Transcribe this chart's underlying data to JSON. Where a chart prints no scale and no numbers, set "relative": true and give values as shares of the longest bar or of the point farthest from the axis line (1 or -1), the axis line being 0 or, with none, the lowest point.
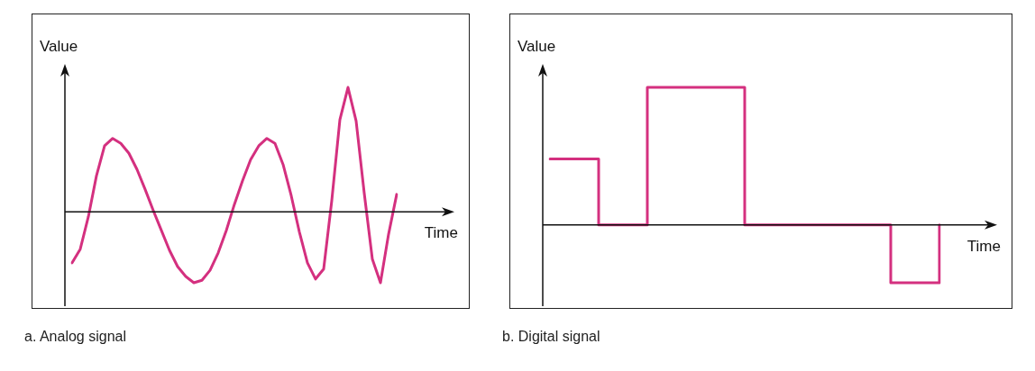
{
  "chart_data": [
    {
      "type": "line",
      "relative": true,
      "xlabel": "Time",
      "ylabel": "Value",
      "annotations": [
        "a. Analog signal"
      ],
      "color": "#d4307f",
      "categories": [
        null,
        null,
        null,
        null,
        null,
        null,
        null,
        null,
        null,
        null,
        null,
        null,
        null,
        null,
        null,
        null,
        null,
        null,
        null,
        null,
        null,
        null,
        null,
        null,
        null,
        null,
        null,
        null,
        null,
        null,
        null,
        null,
        null,
        null,
        null,
        null,
        null,
        null,
        null,
        null,
        null
      ],
      "values": [
        -0.41,
        -0.3,
        -0.04,
        0.29,
        0.53,
        0.59,
        0.55,
        0.47,
        0.34,
        0.18,
        0.01,
        -0.15,
        -0.31,
        -0.44,
        -0.52,
        -0.57,
        -0.55,
        -0.47,
        -0.33,
        -0.15,
        0.06,
        0.25,
        0.42,
        0.53,
        0.59,
        0.55,
        0.38,
        0.13,
        -0.16,
        -0.41,
        -0.54,
        -0.46,
        0.09,
        0.74,
        1,
        0.73,
        0.15,
        -0.38,
        -0.57,
        -0.18,
        0.14
      ]
    },
    {
      "type": "step",
      "relative": true,
      "xlabel": "Time",
      "ylabel": "Value",
      "annotations": [
        "b. Digital signal"
      ],
      "color": "#d4307f",
      "categories": [
        null,
        null,
        null,
        null,
        null,
        null,
        null,
        null,
        null
      ],
      "values": [
        0.48,
        0,
        1,
        1,
        0,
        0,
        0,
        -0.42,
        0
      ]
    }
  ]
}
